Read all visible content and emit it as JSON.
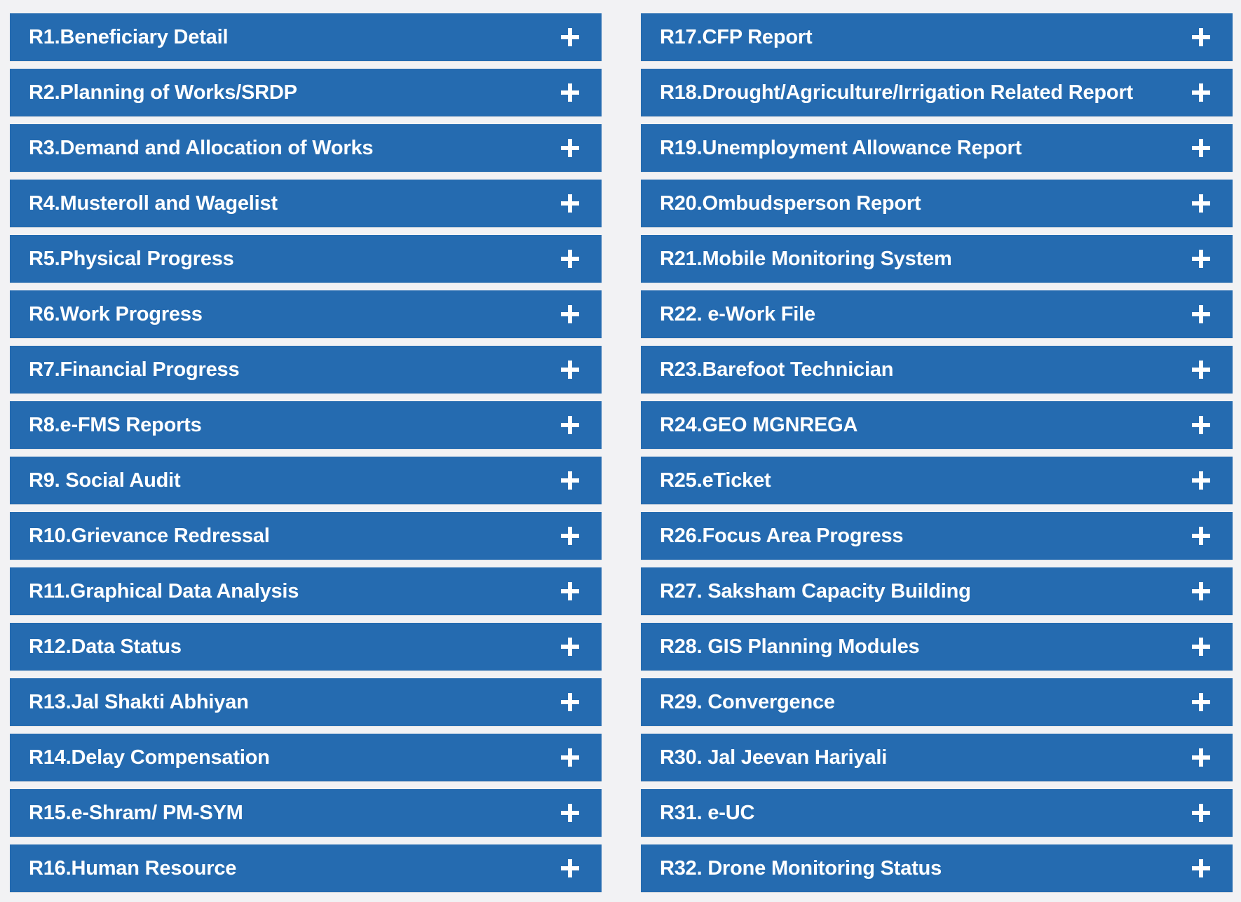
{
  "accent_color": "#256bb0",
  "background_color": "#f2f2f4",
  "expand_icon": "plus-icon",
  "left_column": [
    {
      "id": "r1",
      "label": "R1.Beneficiary Detail"
    },
    {
      "id": "r2",
      "label": "R2.Planning of Works/SRDP"
    },
    {
      "id": "r3",
      "label": "R3.Demand and Allocation of Works"
    },
    {
      "id": "r4",
      "label": "R4.Musteroll and Wagelist"
    },
    {
      "id": "r5",
      "label": "R5.Physical Progress"
    },
    {
      "id": "r6",
      "label": "R6.Work Progress"
    },
    {
      "id": "r7",
      "label": "R7.Financial Progress"
    },
    {
      "id": "r8",
      "label": "R8.e-FMS Reports"
    },
    {
      "id": "r9",
      "label": "R9. Social Audit"
    },
    {
      "id": "r10",
      "label": "R10.Grievance Redressal"
    },
    {
      "id": "r11",
      "label": "R11.Graphical Data Analysis"
    },
    {
      "id": "r12",
      "label": "R12.Data Status"
    },
    {
      "id": "r13",
      "label": "R13.Jal Shakti Abhiyan"
    },
    {
      "id": "r14",
      "label": "R14.Delay Compensation"
    },
    {
      "id": "r15",
      "label": "R15.e-Shram/ PM-SYM"
    },
    {
      "id": "r16",
      "label": "R16.Human Resource"
    }
  ],
  "right_column": [
    {
      "id": "r17",
      "label": "R17.CFP Report"
    },
    {
      "id": "r18",
      "label": "R18.Drought/Agriculture/Irrigation Related Report"
    },
    {
      "id": "r19",
      "label": "R19.Unemployment Allowance Report"
    },
    {
      "id": "r20",
      "label": "R20.Ombudsperson Report"
    },
    {
      "id": "r21",
      "label": "R21.Mobile Monitoring System"
    },
    {
      "id": "r22",
      "label": "R22. e-Work File"
    },
    {
      "id": "r23",
      "label": "R23.Barefoot Technician"
    },
    {
      "id": "r24",
      "label": "R24.GEO MGNREGA"
    },
    {
      "id": "r25",
      "label": "R25.eTicket"
    },
    {
      "id": "r26",
      "label": "R26.Focus Area Progress"
    },
    {
      "id": "r27",
      "label": "R27. Saksham Capacity Building"
    },
    {
      "id": "r28",
      "label": "R28. GIS Planning Modules"
    },
    {
      "id": "r29",
      "label": "R29. Convergence"
    },
    {
      "id": "r30",
      "label": "R30. Jal Jeevan Hariyali"
    },
    {
      "id": "r31",
      "label": "R31. e-UC"
    },
    {
      "id": "r32",
      "label": "R32. Drone Monitoring Status"
    }
  ]
}
